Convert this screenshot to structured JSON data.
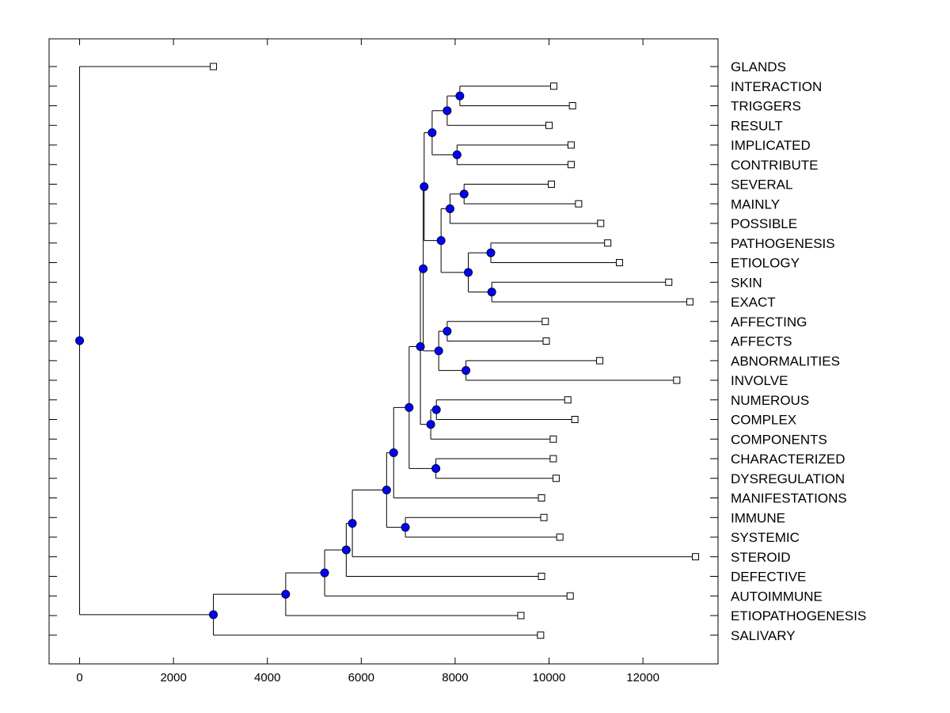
{
  "chart_data": {
    "type": "dendrogram",
    "title": "",
    "xlabel": "",
    "ylabel": "",
    "xlim": [
      -650,
      13600
    ],
    "xticks": [
      0,
      2000,
      4000,
      6000,
      8000,
      10000,
      12000
    ],
    "xtick_labels": [
      "0",
      "2000",
      "4000",
      "6000",
      "8000",
      "10000",
      "12000"
    ],
    "grid": false,
    "colors": {
      "node_fill": "#0000ff",
      "node_stroke": "#000033",
      "line": "#000000",
      "leaf_fill": "#ffffff"
    },
    "leaves": [
      {
        "label": "GLANDS",
        "x": 2850
      },
      {
        "label": "INTERACTION",
        "x": 10100
      },
      {
        "label": "TRIGGERS",
        "x": 10500
      },
      {
        "label": "RESULT",
        "x": 10000
      },
      {
        "label": "IMPLICATED",
        "x": 10470
      },
      {
        "label": "CONTRIBUTE",
        "x": 10470
      },
      {
        "label": "SEVERAL",
        "x": 10050
      },
      {
        "label": "MAINLY",
        "x": 10630
      },
      {
        "label": "POSSIBLE",
        "x": 11100
      },
      {
        "label": "PATHOGENESIS",
        "x": 11250
      },
      {
        "label": "ETIOLOGY",
        "x": 11500
      },
      {
        "label": "SKIN",
        "x": 12550
      },
      {
        "label": "EXACT",
        "x": 13000
      },
      {
        "label": "AFFECTING",
        "x": 9920
      },
      {
        "label": "AFFECTS",
        "x": 9940
      },
      {
        "label": "ABNORMALITIES",
        "x": 11080
      },
      {
        "label": "INVOLVE",
        "x": 12720
      },
      {
        "label": "NUMEROUS",
        "x": 10400
      },
      {
        "label": "COMPLEX",
        "x": 10550
      },
      {
        "label": "COMPONENTS",
        "x": 10090
      },
      {
        "label": "CHARACTERIZED",
        "x": 10090
      },
      {
        "label": "DYSREGULATION",
        "x": 10150
      },
      {
        "label": "MANIFESTATIONS",
        "x": 9840
      },
      {
        "label": "IMMUNE",
        "x": 9890
      },
      {
        "label": "SYSTEMIC",
        "x": 10230
      },
      {
        "label": "STEROID",
        "x": 13120
      },
      {
        "label": "DEFECTIVE",
        "x": 9840
      },
      {
        "label": "AUTOIMMUNE",
        "x": 10450
      },
      {
        "label": "ETIOPATHOGENESIS",
        "x": 9400
      },
      {
        "label": "SALIVARY",
        "x": 9820
      }
    ],
    "merges": [
      {
        "id": "n1",
        "x": 8100,
        "children": [
          "INTERACTION",
          "TRIGGERS"
        ]
      },
      {
        "id": "n2",
        "x": 7830,
        "children": [
          "n1",
          "RESULT"
        ]
      },
      {
        "id": "n3",
        "x": 8040,
        "children": [
          "IMPLICATED",
          "CONTRIBUTE"
        ]
      },
      {
        "id": "n4",
        "x": 7510,
        "children": [
          "n2",
          "n3"
        ]
      },
      {
        "id": "n5",
        "x": 8190,
        "children": [
          "SEVERAL",
          "MAINLY"
        ]
      },
      {
        "id": "n6",
        "x": 7890,
        "children": [
          "n5",
          "POSSIBLE"
        ]
      },
      {
        "id": "n7",
        "x": 8760,
        "children": [
          "PATHOGENESIS",
          "ETIOLOGY"
        ]
      },
      {
        "id": "n8",
        "x": 8780,
        "children": [
          "SKIN",
          "EXACT"
        ]
      },
      {
        "id": "n9",
        "x": 8280,
        "children": [
          "n7",
          "n8"
        ]
      },
      {
        "id": "n10",
        "x": 7700,
        "children": [
          "n6",
          "n9"
        ]
      },
      {
        "id": "n11",
        "x": 7340,
        "children": [
          "n4",
          "n10"
        ]
      },
      {
        "id": "n12",
        "x": 7830,
        "children": [
          "AFFECTING",
          "AFFECTS"
        ]
      },
      {
        "id": "n13",
        "x": 8230,
        "children": [
          "ABNORMALITIES",
          "INVOLVE"
        ]
      },
      {
        "id": "n14",
        "x": 7650,
        "children": [
          "n12",
          "n13"
        ]
      },
      {
        "id": "n15",
        "x": 7320,
        "children": [
          "n11",
          "n14"
        ]
      },
      {
        "id": "n16",
        "x": 7600,
        "children": [
          "NUMEROUS",
          "COMPLEX"
        ]
      },
      {
        "id": "n17",
        "x": 7480,
        "children": [
          "n16",
          "COMPONENTS"
        ]
      },
      {
        "id": "n18",
        "x": 7260,
        "children": [
          "n15",
          "n17"
        ]
      },
      {
        "id": "n19",
        "x": 7590,
        "children": [
          "CHARACTERIZED",
          "DYSREGULATION"
        ]
      },
      {
        "id": "n20",
        "x": 7020,
        "children": [
          "n18",
          "n19"
        ]
      },
      {
        "id": "n21",
        "x": 6690,
        "children": [
          "n20",
          "MANIFESTATIONS"
        ]
      },
      {
        "id": "n22",
        "x": 6940,
        "children": [
          "IMMUNE",
          "SYSTEMIC"
        ]
      },
      {
        "id": "n23",
        "x": 6540,
        "children": [
          "n21",
          "n22"
        ]
      },
      {
        "id": "n24",
        "x": 5810,
        "children": [
          "n23",
          "STEROID"
        ]
      },
      {
        "id": "n25",
        "x": 5680,
        "children": [
          "n24",
          "DEFECTIVE"
        ]
      },
      {
        "id": "n26",
        "x": 5220,
        "children": [
          "n25",
          "AUTOIMMUNE"
        ]
      },
      {
        "id": "n27",
        "x": 4390,
        "children": [
          "n26",
          "ETIOPATHOGENESIS"
        ]
      },
      {
        "id": "n28",
        "x": 2850,
        "children": [
          "n27",
          "SALIVARY"
        ]
      },
      {
        "id": "n29",
        "x": 0,
        "children": [
          "GLANDS",
          "n28"
        ]
      }
    ]
  }
}
